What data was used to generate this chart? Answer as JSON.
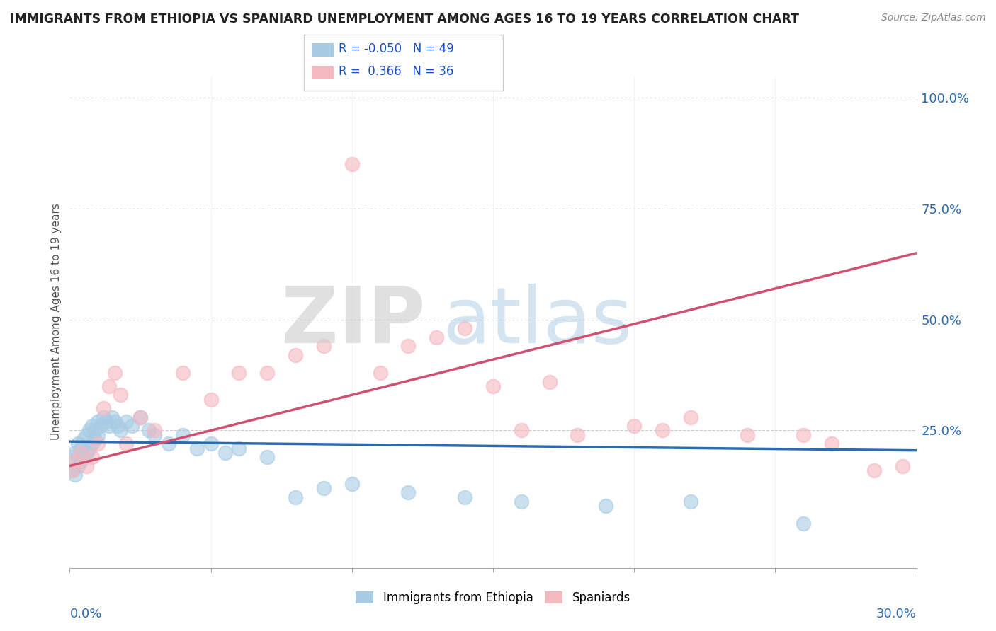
{
  "title": "IMMIGRANTS FROM ETHIOPIA VS SPANIARD UNEMPLOYMENT AMONG AGES 16 TO 19 YEARS CORRELATION CHART",
  "source": "Source: ZipAtlas.com",
  "ylabel": "Unemployment Among Ages 16 to 19 years",
  "right_yticks": [
    "100.0%",
    "75.0%",
    "50.0%",
    "25.0%"
  ],
  "right_ytick_vals": [
    1.0,
    0.75,
    0.5,
    0.25
  ],
  "legend1_label": "Immigrants from Ethiopia",
  "legend2_label": "Spaniards",
  "R1": "-0.050",
  "N1": "49",
  "R2": "0.366",
  "N2": "36",
  "blue_color": "#a8cce4",
  "pink_color": "#f4b8c1",
  "blue_line_color": "#2b6cb0",
  "pink_line_color": "#d05070",
  "blue_points_x": [
    0.001,
    0.001,
    0.002,
    0.002,
    0.003,
    0.003,
    0.004,
    0.004,
    0.005,
    0.005,
    0.006,
    0.006,
    0.007,
    0.007,
    0.008,
    0.008,
    0.009,
    0.009,
    0.01,
    0.01,
    0.011,
    0.012,
    0.013,
    0.014,
    0.015,
    0.016,
    0.017,
    0.018,
    0.02,
    0.022,
    0.025,
    0.028,
    0.03,
    0.035,
    0.04,
    0.045,
    0.05,
    0.055,
    0.06,
    0.07,
    0.08,
    0.09,
    0.1,
    0.12,
    0.14,
    0.16,
    0.19,
    0.22,
    0.26
  ],
  "blue_points_y": [
    0.19,
    0.16,
    0.2,
    0.15,
    0.22,
    0.17,
    0.21,
    0.18,
    0.23,
    0.19,
    0.24,
    0.2,
    0.25,
    0.21,
    0.26,
    0.22,
    0.25,
    0.23,
    0.27,
    0.24,
    0.26,
    0.28,
    0.27,
    0.26,
    0.28,
    0.27,
    0.26,
    0.25,
    0.27,
    0.26,
    0.28,
    0.25,
    0.24,
    0.22,
    0.24,
    0.21,
    0.22,
    0.2,
    0.21,
    0.19,
    0.1,
    0.12,
    0.13,
    0.11,
    0.1,
    0.09,
    0.08,
    0.09,
    0.04
  ],
  "pink_points_x": [
    0.001,
    0.002,
    0.004,
    0.006,
    0.008,
    0.01,
    0.012,
    0.014,
    0.016,
    0.018,
    0.02,
    0.025,
    0.03,
    0.04,
    0.05,
    0.06,
    0.07,
    0.08,
    0.09,
    0.1,
    0.11,
    0.12,
    0.13,
    0.14,
    0.15,
    0.16,
    0.17,
    0.18,
    0.2,
    0.21,
    0.22,
    0.24,
    0.26,
    0.27,
    0.285,
    0.295
  ],
  "pink_points_y": [
    0.16,
    0.18,
    0.2,
    0.17,
    0.19,
    0.22,
    0.3,
    0.35,
    0.38,
    0.33,
    0.22,
    0.28,
    0.25,
    0.38,
    0.32,
    0.38,
    0.38,
    0.42,
    0.44,
    0.85,
    0.38,
    0.44,
    0.46,
    0.48,
    0.35,
    0.25,
    0.36,
    0.24,
    0.26,
    0.25,
    0.28,
    0.24,
    0.24,
    0.22,
    0.16,
    0.17
  ],
  "blue_line_x": [
    0.0,
    0.3
  ],
  "blue_line_y": [
    0.225,
    0.205
  ],
  "pink_line_x": [
    0.0,
    0.3
  ],
  "pink_line_y": [
    0.17,
    0.65
  ],
  "xmin": 0.0,
  "xmax": 0.3,
  "ymin": -0.06,
  "ymax": 1.05
}
